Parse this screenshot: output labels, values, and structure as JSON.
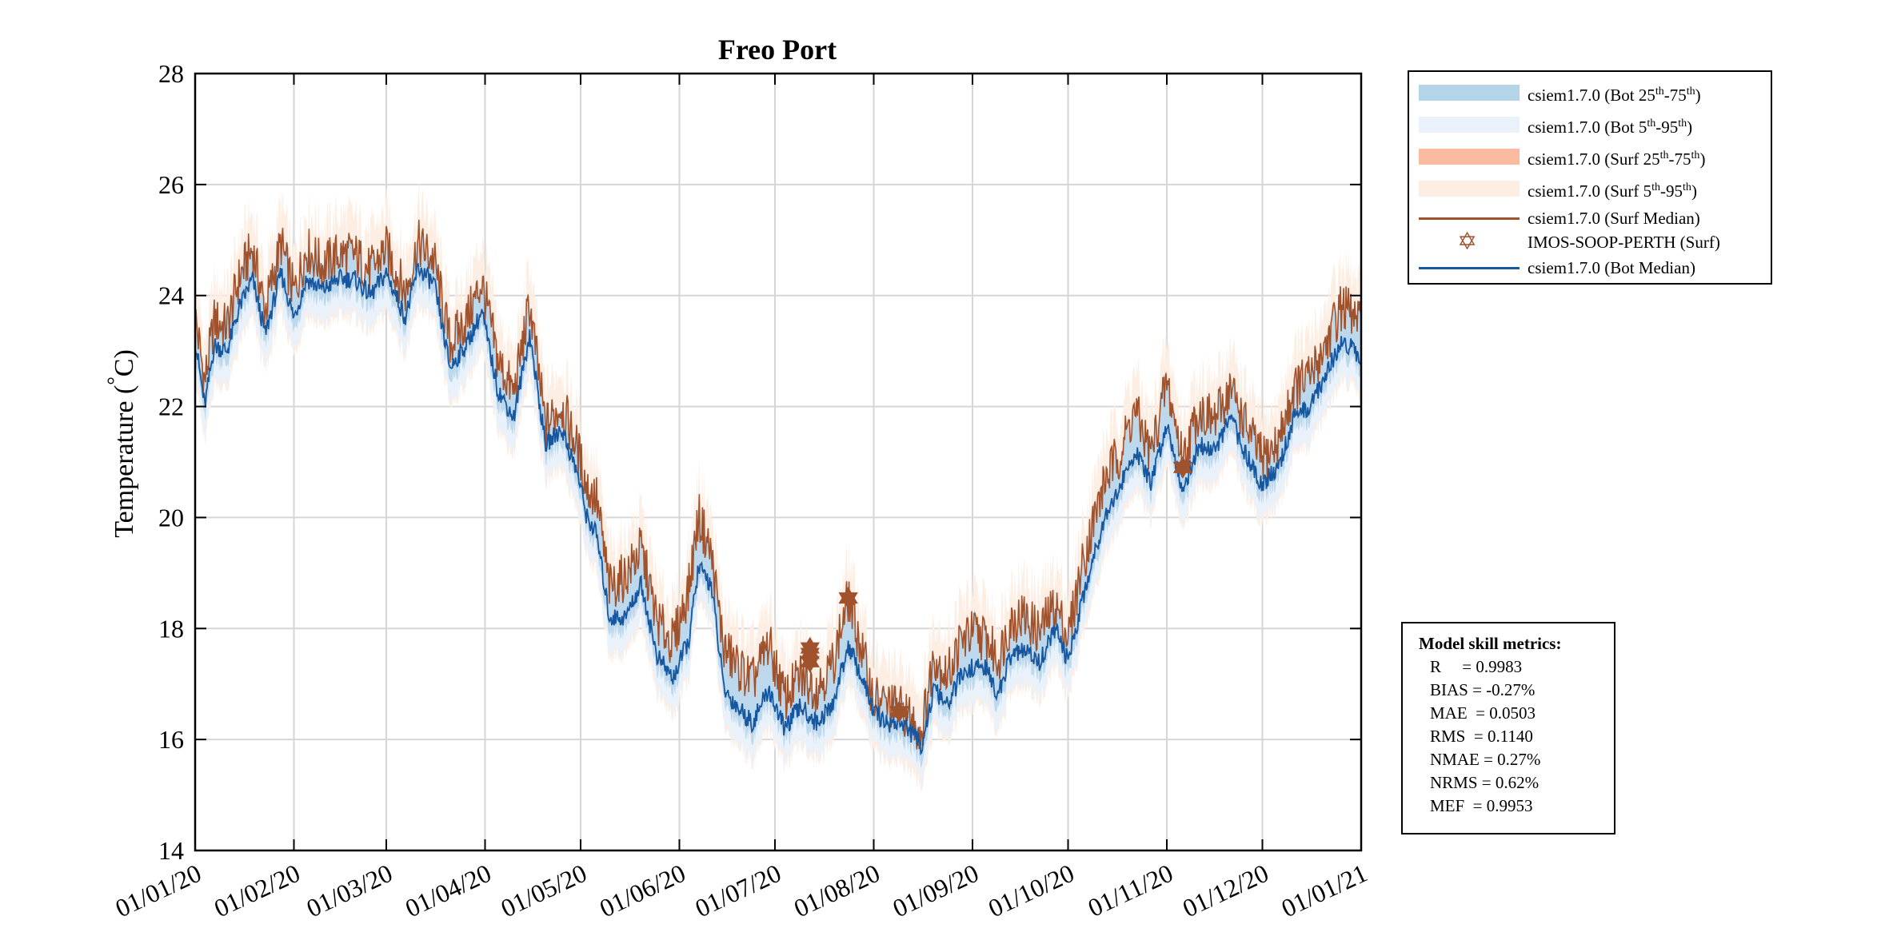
{
  "chart_data": {
    "type": "line",
    "title": "Freo Port",
    "ylabel": "Temperature (",
    "ylabel_degree": "°",
    "ylabel_unit": "C)",
    "xlabel": "",
    "ylim": [
      14,
      28
    ],
    "xlim_days": [
      0,
      366
    ],
    "yticks": [
      14,
      16,
      18,
      20,
      22,
      24,
      26,
      28
    ],
    "xticks": [
      {
        "label": "01/01/20",
        "day": 0
      },
      {
        "label": "01/02/20",
        "day": 31
      },
      {
        "label": "01/03/20",
        "day": 60
      },
      {
        "label": "01/04/20",
        "day": 91
      },
      {
        "label": "01/05/20",
        "day": 121
      },
      {
        "label": "01/06/20",
        "day": 152
      },
      {
        "label": "01/07/20",
        "day": 182
      },
      {
        "label": "01/08/20",
        "day": 213
      },
      {
        "label": "01/09/20",
        "day": 244
      },
      {
        "label": "01/10/20",
        "day": 274
      },
      {
        "label": "01/11/20",
        "day": 305
      },
      {
        "label": "01/12/20",
        "day": 335
      },
      {
        "label": "01/01/21",
        "day": 366
      }
    ],
    "grid": true,
    "series": [
      {
        "name": "csiem1.7.0 (Surf Median)",
        "color": "#a0522d",
        "x": [
          0,
          3,
          6,
          10,
          14,
          18,
          22,
          27,
          31,
          35,
          40,
          45,
          50,
          55,
          60,
          66,
          70,
          75,
          80,
          85,
          90,
          95,
          100,
          105,
          110,
          115,
          120,
          123,
          126,
          130,
          135,
          140,
          145,
          150,
          155,
          158,
          162,
          166,
          170,
          175,
          180,
          185,
          190,
          195,
          200,
          205,
          210,
          213,
          217,
          222,
          228,
          232,
          236,
          240,
          244,
          248,
          252,
          256,
          260,
          265,
          270,
          274,
          278,
          282,
          286,
          290,
          295,
          300,
          305,
          310,
          315,
          320,
          325,
          330,
          335,
          340,
          345,
          350,
          355,
          360,
          366
        ],
        "y": [
          23.5,
          22.3,
          23.4,
          23.3,
          24.2,
          24.7,
          23.6,
          24.8,
          23.9,
          24.7,
          24.4,
          24.6,
          24.6,
          24.3,
          24.7,
          23.9,
          24.8,
          24.5,
          23.0,
          23.4,
          24.1,
          22.7,
          22.1,
          23.7,
          21.5,
          21.9,
          21.1,
          20.4,
          20.2,
          18.6,
          18.8,
          19.3,
          18.0,
          17.6,
          18.6,
          19.9,
          19.2,
          17.5,
          17.2,
          16.9,
          17.6,
          16.6,
          17.0,
          16.8,
          17.2,
          18.4,
          17.3,
          16.6,
          16.5,
          16.4,
          16.0,
          17.4,
          17.0,
          17.6,
          17.8,
          17.7,
          17.3,
          18.0,
          18.1,
          17.8,
          18.3,
          17.7,
          18.9,
          19.8,
          20.6,
          21.0,
          21.8,
          21.0,
          22.3,
          20.9,
          21.8,
          21.6,
          22.2,
          21.5,
          20.9,
          21.2,
          22.2,
          22.4,
          23.0,
          23.7,
          23.3
        ]
      },
      {
        "name": "csiem1.7.0 (Bot Median)",
        "color": "#17579f",
        "x": [
          0,
          3,
          6,
          10,
          14,
          18,
          22,
          27,
          31,
          35,
          40,
          45,
          50,
          55,
          60,
          66,
          70,
          75,
          80,
          85,
          90,
          95,
          100,
          105,
          110,
          115,
          120,
          123,
          126,
          130,
          135,
          140,
          145,
          150,
          155,
          158,
          162,
          166,
          170,
          175,
          180,
          185,
          190,
          195,
          200,
          205,
          210,
          213,
          217,
          222,
          228,
          232,
          236,
          240,
          244,
          248,
          252,
          256,
          260,
          265,
          270,
          274,
          278,
          282,
          286,
          290,
          295,
          300,
          305,
          310,
          315,
          320,
          325,
          330,
          335,
          340,
          345,
          350,
          355,
          360,
          366
        ],
        "y": [
          23.2,
          22.0,
          23.1,
          23.0,
          23.8,
          24.3,
          23.3,
          24.4,
          23.6,
          24.3,
          24.1,
          24.3,
          24.3,
          24.0,
          24.4,
          23.6,
          24.5,
          24.2,
          22.7,
          23.1,
          23.7,
          22.3,
          21.8,
          23.3,
          21.3,
          21.6,
          20.8,
          20.0,
          19.7,
          18.2,
          18.2,
          18.8,
          17.5,
          17.1,
          17.8,
          19.1,
          18.8,
          16.9,
          16.6,
          16.3,
          16.9,
          16.2,
          16.6,
          16.3,
          16.6,
          17.7,
          17.0,
          16.5,
          16.3,
          16.3,
          15.9,
          16.9,
          16.6,
          17.1,
          17.3,
          17.3,
          16.8,
          17.5,
          17.6,
          17.4,
          18.0,
          17.4,
          18.4,
          19.3,
          20.1,
          20.5,
          21.2,
          20.6,
          21.7,
          20.5,
          21.3,
          21.2,
          21.8,
          21.1,
          20.6,
          20.9,
          21.8,
          22.0,
          22.6,
          23.2,
          22.9
        ]
      }
    ],
    "observations": {
      "name": "IMOS-SOOP-PERTH (Surf)",
      "color": "#a0522d",
      "x": [
        193,
        193,
        193,
        205,
        221,
        310
      ],
      "y": [
        17.65,
        17.55,
        17.4,
        18.55,
        16.5,
        20.9
      ]
    },
    "legend": [
      {
        "key": "bot_iqr",
        "text": "csiem1.7.0 (Bot 25",
        "sup1": "th",
        "mid": "-75",
        "sup2": "th",
        "end": ")",
        "color": "#b4d4ea"
      },
      {
        "key": "bot_90",
        "text": "csiem1.7.0 (Bot 5",
        "sup1": "th",
        "mid": "-95",
        "sup2": "th",
        "end": ")",
        "color": "#e9f1fa"
      },
      {
        "key": "surf_iqr",
        "text": "csiem1.7.0 (Surf 25",
        "sup1": "th",
        "mid": "-75",
        "sup2": "th",
        "end": ")",
        "color": "#fcbba1"
      },
      {
        "key": "surf_90",
        "text": "csiem1.7.0 (Surf 5",
        "sup1": "th",
        "mid": "-95",
        "sup2": "th",
        "end": ")",
        "color": "#fdeee4"
      },
      {
        "key": "surf_median",
        "text": "csiem1.7.0 (Surf Median)",
        "color": "#a0522d"
      },
      {
        "key": "obs",
        "text": "IMOS-SOOP-PERTH (Surf)",
        "color": "#a0522d"
      },
      {
        "key": "bot_median",
        "text": "csiem1.7.0 (Bot Median)",
        "color": "#17579f"
      }
    ]
  },
  "metrics": {
    "title": "Model skill metrics:",
    "rows": [
      "R     = 0.9983",
      "BIAS = -0.27%",
      "MAE  = 0.0503",
      "RMS  = 0.1140",
      "NMAE = 0.27%",
      "NRMS = 0.62%",
      "MEF  = 0.9953"
    ]
  }
}
